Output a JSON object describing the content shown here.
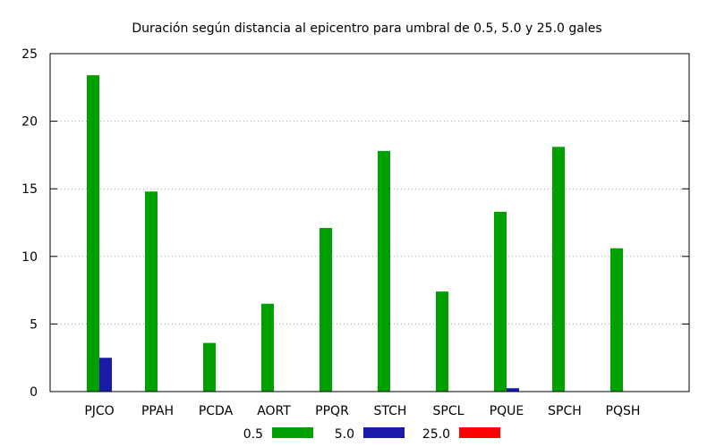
{
  "chart_data": {
    "type": "bar",
    "title": "Duración según distancia al epicentro para umbral de 0.5, 5.0 y 25.0 gales",
    "xlabel": "",
    "ylabel": "",
    "ylim": [
      0,
      25
    ],
    "yticks": [
      0,
      5,
      10,
      15,
      20,
      25
    ],
    "grid": true,
    "legend_position": "bottom",
    "categories": [
      "PJCO",
      "PPAH",
      "PCDA",
      "AORT",
      "PPQR",
      "STCH",
      "SPCL",
      "PQUE",
      "SPCH",
      "PQSH"
    ],
    "series": [
      {
        "name": "0.5",
        "color": "#00a000",
        "values": [
          23.4,
          14.8,
          3.6,
          6.5,
          12.1,
          17.8,
          7.4,
          13.3,
          18.1,
          10.6
        ]
      },
      {
        "name": "5.0",
        "color": "#1a1aa8",
        "values": [
          2.5,
          0,
          0,
          0,
          0,
          0,
          0,
          0.25,
          0,
          0
        ]
      },
      {
        "name": "25.0",
        "color": "#ff0000",
        "values": [
          0,
          0,
          0,
          0,
          0,
          0,
          0,
          0,
          0,
          0
        ]
      }
    ]
  }
}
